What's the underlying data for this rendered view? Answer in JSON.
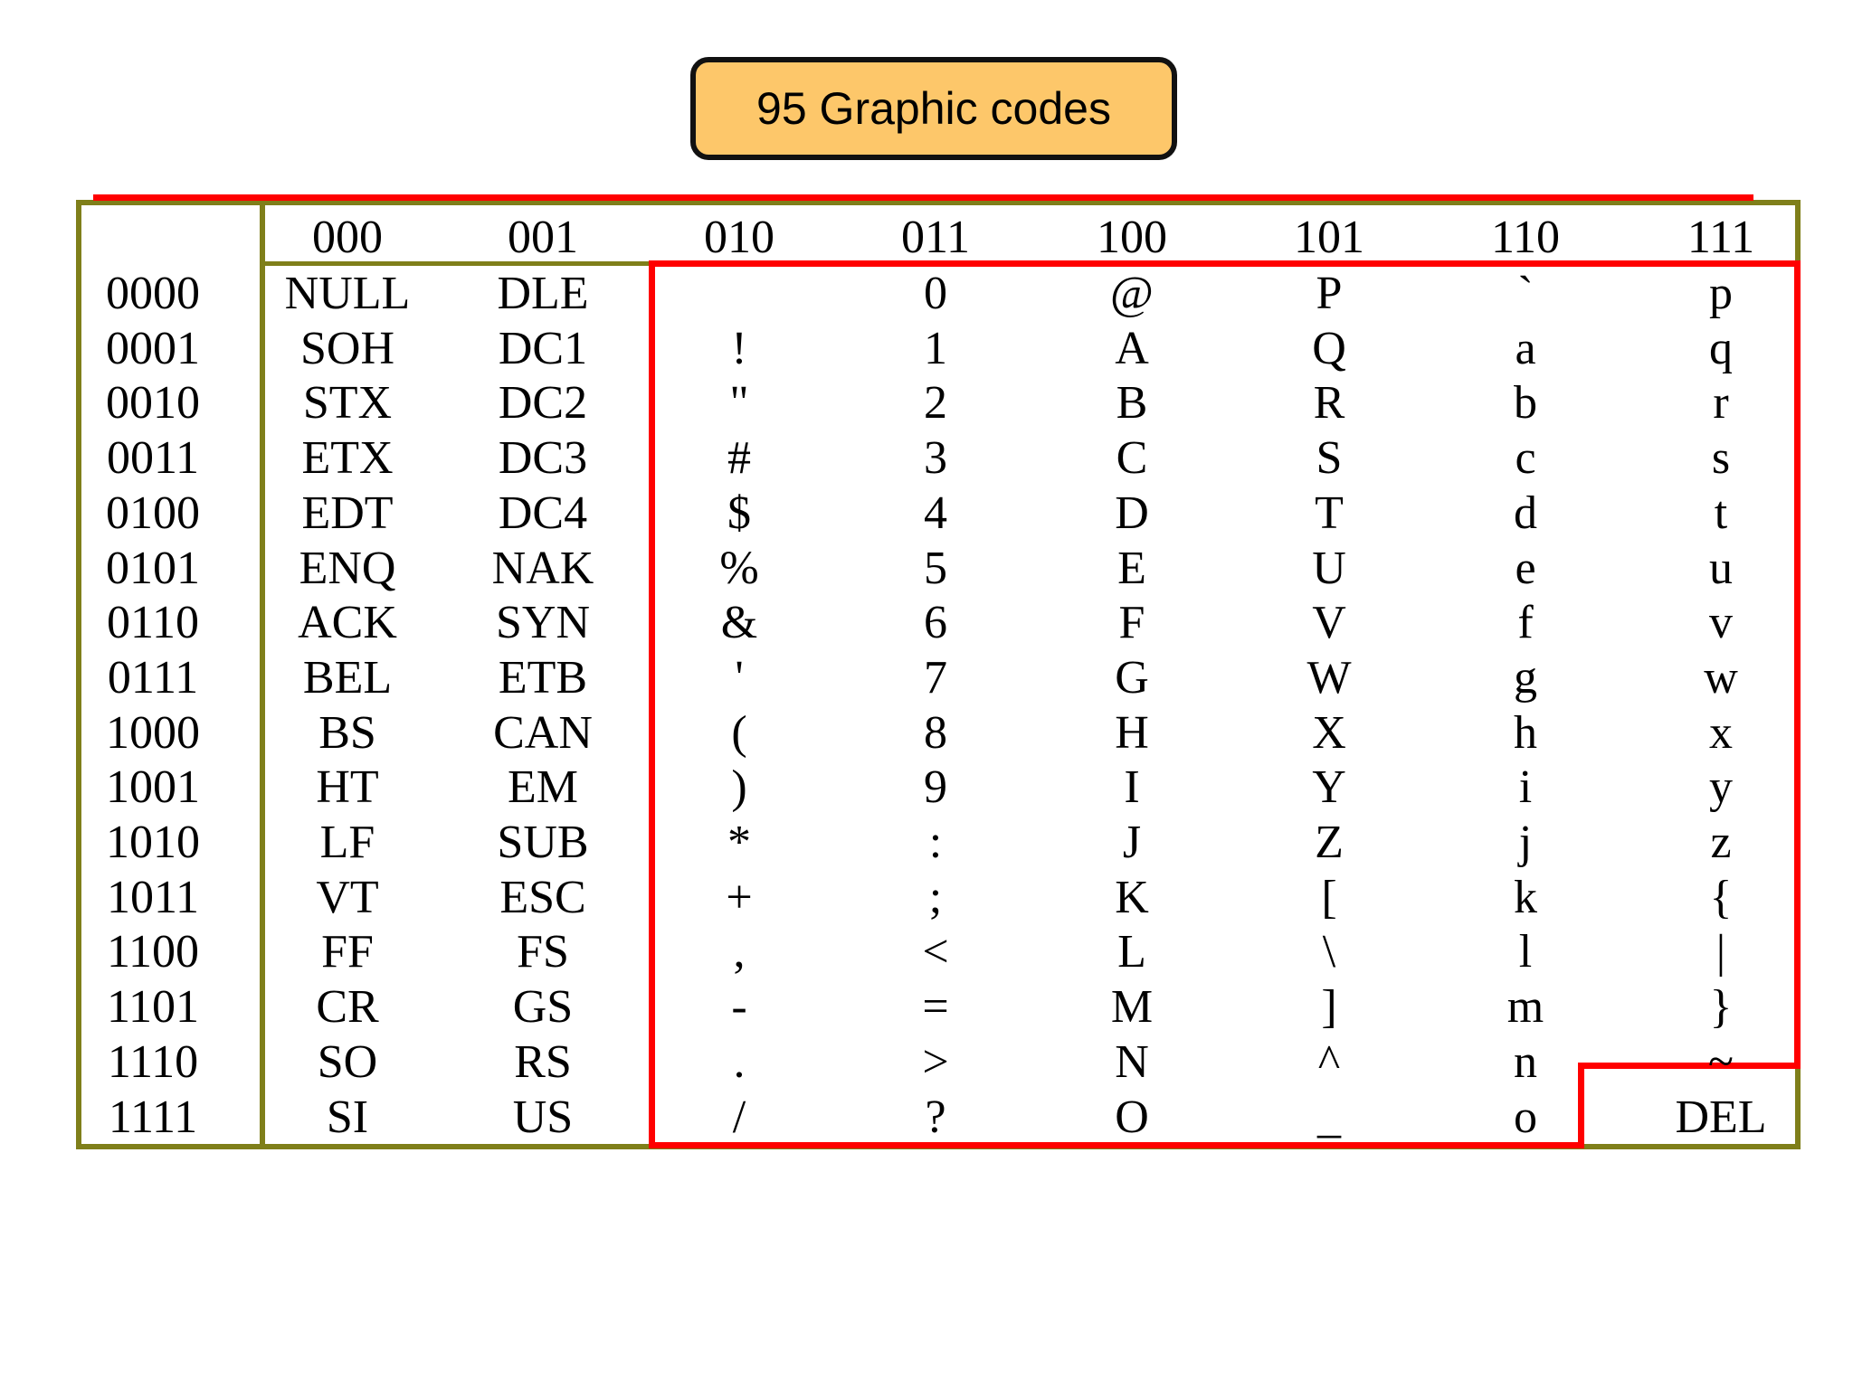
{
  "callout": {
    "label": "95 Graphic codes"
  },
  "colors": {
    "callout_fill": "#fdc76a",
    "table_border": "#7f7f1a",
    "highlight": "#ff0000"
  },
  "table": {
    "column_headers": [
      "000",
      "001",
      "010",
      "011",
      "100",
      "101",
      "110",
      "111"
    ],
    "row_headers": [
      "0000",
      "0001",
      "0010",
      "0011",
      "0100",
      "0101",
      "0110",
      "0111",
      "1000",
      "1001",
      "1010",
      "1011",
      "1100",
      "1101",
      "1110",
      "1111"
    ],
    "columns": [
      [
        "NULL",
        "SOH",
        "STX",
        "ETX",
        "EDT",
        "ENQ",
        "ACK",
        "BEL",
        "BS",
        "HT",
        "LF",
        "VT",
        "FF",
        "CR",
        "SO",
        "SI"
      ],
      [
        "DLE",
        "DC1",
        "DC2",
        "DC3",
        "DC4",
        "NAK",
        "SYN",
        "ETB",
        "CAN",
        "EM",
        "SUB",
        "ESC",
        "FS",
        "GS",
        "RS",
        "US"
      ],
      [
        "",
        "!",
        "\"",
        "#",
        "$",
        "%",
        "&",
        "'",
        "(",
        ")",
        "*",
        "+",
        ",",
        "-",
        ".",
        "/"
      ],
      [
        "0",
        "1",
        "2",
        "3",
        "4",
        "5",
        "6",
        "7",
        "8",
        "9",
        ":",
        ";",
        "<",
        "=",
        ">",
        "?"
      ],
      [
        "@",
        "A",
        "B",
        "C",
        "D",
        "E",
        "F",
        "G",
        "H",
        "I",
        "J",
        "K",
        "L",
        "M",
        "N",
        "O"
      ],
      [
        "P",
        "Q",
        "R",
        "S",
        "T",
        "U",
        "V",
        "W",
        "X",
        "Y",
        "Z",
        "[",
        "\\",
        "]",
        "^",
        "_"
      ],
      [
        "`",
        "a",
        "b",
        "c",
        "d",
        "e",
        "f",
        "g",
        "h",
        "i",
        "j",
        "k",
        "l",
        "m",
        "n",
        "o"
      ],
      [
        "p",
        "q",
        "r",
        "s",
        "t",
        "u",
        "v",
        "w",
        "x",
        "y",
        "z",
        "{",
        "|",
        "}",
        "~",
        "DEL"
      ]
    ]
  }
}
